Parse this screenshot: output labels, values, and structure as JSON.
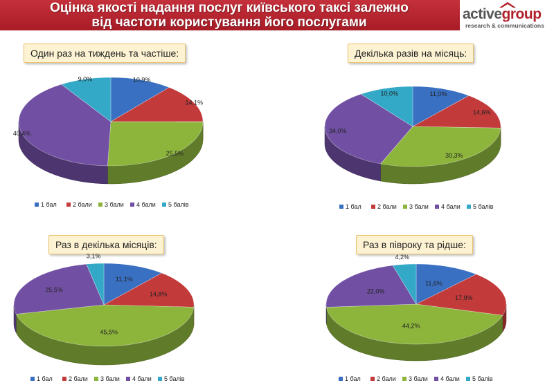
{
  "header": {
    "title_line1": "Оцінка якості надання послуг київського таксі залежно",
    "title_line2": "від частоти користування його послугами"
  },
  "logo": {
    "word_active": "active",
    "word_group": "group",
    "subtitle": "research & communications"
  },
  "colors": {
    "1 бал": "#3a70c2",
    "2 бали": "#c33a3b",
    "3 бали": "#8db53c",
    "4 бали": "#7150a3",
    "5 балів": "#33a9c7"
  },
  "chart_data": [
    {
      "type": "pie",
      "title": "Один раз на тиждень та частіше:",
      "categories": [
        "1 бал",
        "2 бали",
        "3 бали",
        "4 бали",
        "5 балів"
      ],
      "values": [
        10.9,
        14.1,
        25.5,
        40.4,
        9.0
      ],
      "labels": [
        "10,9%",
        "14,1%",
        "25,5%",
        "40,4%",
        "9,0%"
      ],
      "legend_position": "bottom"
    },
    {
      "type": "pie",
      "title": "Декілька разів на місяць:",
      "categories": [
        "1 бал",
        "2 бали",
        "3 бали",
        "4 бали",
        "5 балів"
      ],
      "values": [
        11.0,
        14.6,
        30.3,
        34.0,
        10.0
      ],
      "labels": [
        "11,0%",
        "14,6%",
        "30,3%",
        "34,0%",
        "10,0%"
      ],
      "legend_position": "bottom"
    },
    {
      "type": "pie",
      "title": "Раз в декілька місяців:",
      "categories": [
        "1 бал",
        "2 бали",
        "3 бали",
        "4 бали",
        "5 балів"
      ],
      "values": [
        11.1,
        14.8,
        45.5,
        25.5,
        3.1
      ],
      "labels": [
        "11,1%",
        "14,8%",
        "45,5%",
        "25,5%",
        "3,1%"
      ],
      "legend_position": "bottom"
    },
    {
      "type": "pie",
      "title": "Раз в півроку та рідше:",
      "categories": [
        "1 бал",
        "2 бали",
        "3 бали",
        "4 бали",
        "5 балів"
      ],
      "values": [
        11.6,
        17.9,
        44.2,
        22.0,
        4.2
      ],
      "labels": [
        "11,6%",
        "17,9%",
        "44,2%",
        "22,0%",
        "4,2%"
      ],
      "legend_position": "bottom"
    }
  ]
}
